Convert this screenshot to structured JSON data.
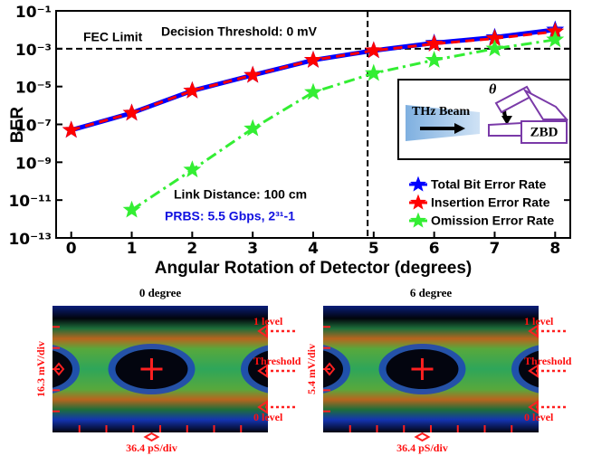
{
  "chart_data": {
    "type": "line",
    "y_label": "BER",
    "x_label": "Angular Rotation of Detector (degrees)",
    "log_y": true,
    "xlim": [
      -0.25,
      8.25
    ],
    "ylim": [
      1e-13,
      0.1
    ],
    "xticks": [
      0,
      1,
      2,
      3,
      4,
      5,
      6,
      7,
      8
    ],
    "yticks": [
      {
        "value": 0.1,
        "label": "10⁻¹"
      },
      {
        "value": 0.001,
        "label": "10⁻³"
      },
      {
        "value": 1e-05,
        "label": "10⁻⁵"
      },
      {
        "value": 1e-07,
        "label": "10⁻⁷"
      },
      {
        "value": 1e-09,
        "label": "10⁻⁹"
      },
      {
        "value": 1e-11,
        "label": "10⁻¹¹"
      },
      {
        "value": 1e-13,
        "label": "10⁻¹³"
      }
    ],
    "x": [
      0,
      1,
      2,
      3,
      4,
      5,
      6,
      7,
      8
    ],
    "series": [
      {
        "name": "Total Bit Error Rate",
        "color": "#0000ff",
        "dash": "solid",
        "values": [
          5e-08,
          4e-07,
          6e-06,
          4e-05,
          0.00025,
          0.0008,
          0.002,
          0.004,
          0.01
        ]
      },
      {
        "name": "Insertion Error Rate",
        "color": "#ff0000",
        "dash": "dashed",
        "values": [
          5e-08,
          4e-07,
          6e-06,
          4e-05,
          0.00025,
          0.0008,
          0.0018,
          0.0035,
          0.008
        ]
      },
      {
        "name": "Omission Error Rate",
        "color": "#33ee33",
        "dash": "dashdot",
        "values": [
          null,
          3e-12,
          4e-10,
          6e-08,
          5e-06,
          5e-05,
          0.00025,
          0.001,
          0.003
        ]
      }
    ],
    "legend": "lower right",
    "hline": {
      "value": 0.001,
      "label": "FEC Limit"
    },
    "vline": {
      "value": 4.9
    },
    "annotations": [
      "Decision Threshold: 0 mV",
      "Link Distance: 100 cm",
      "PRBS: 5.5 Gbps, 2³¹-1"
    ]
  },
  "inset": {
    "beam_label": "THz Beam",
    "angle_label": "θ",
    "detector_label": "ZBD"
  },
  "eye_diagrams": [
    {
      "title": "0 degree",
      "vertical_scale": "16.3 mV/div",
      "horizontal_scale": "36.4 pS/div",
      "levels": [
        "1 level",
        "Threshold",
        "0 level"
      ]
    },
    {
      "title": "6 degree",
      "vertical_scale": "5.4 mV/div",
      "horizontal_scale": "36.4 pS/div",
      "levels": [
        "1 level",
        "Threshold",
        "0 level"
      ]
    }
  ]
}
